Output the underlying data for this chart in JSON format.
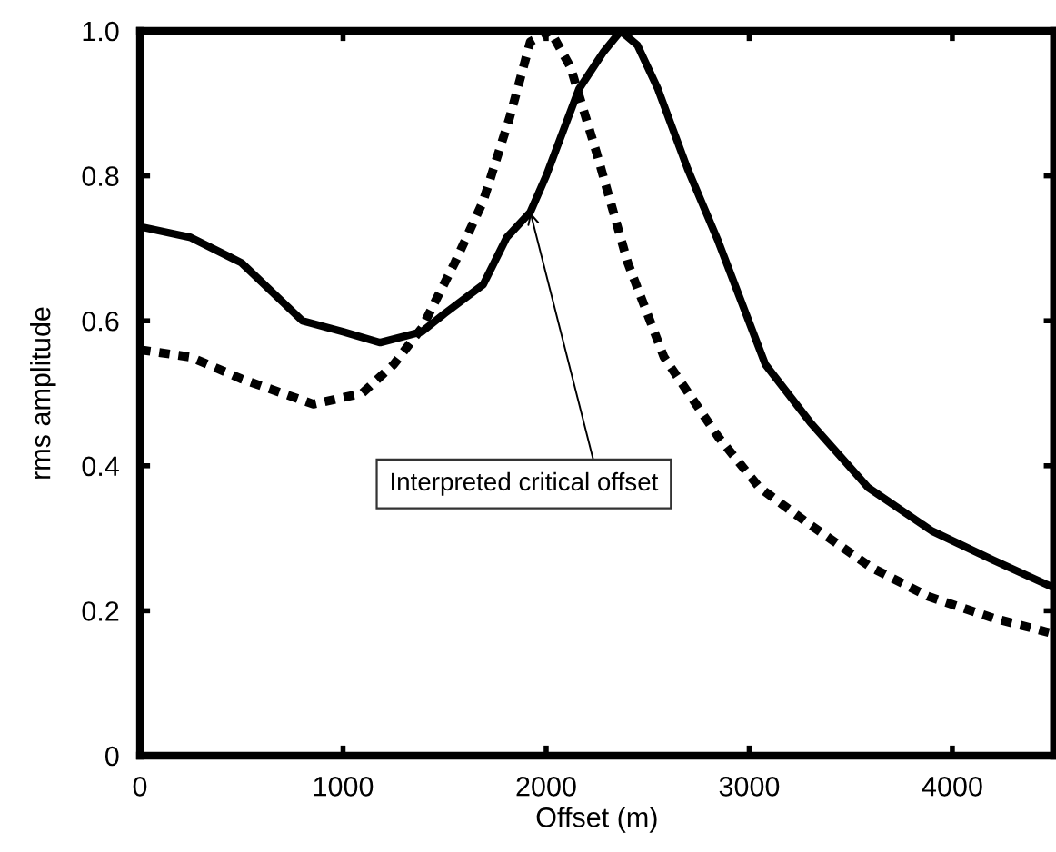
{
  "chart_data": {
    "type": "line",
    "xlabel": "Offset (m)",
    "ylabel": "rms amplitude",
    "xlim": [
      0,
      4500
    ],
    "ylim": [
      0,
      1.0
    ],
    "xticks": [
      0,
      1000,
      2000,
      3000,
      4000
    ],
    "yticks": [
      0,
      0.2,
      0.4,
      0.6,
      0.8,
      {
        "value": 1.0,
        "label": "1.0"
      }
    ],
    "grid": false,
    "legend": false,
    "marker": "none",
    "series": [
      {
        "color": "#000000",
        "line_style": "solid",
        "x": [
          0,
          250,
          500,
          800,
          1000,
          1183,
          1388,
          1500,
          1690,
          1806,
          1922,
          2000,
          2162,
          2280,
          2367,
          2450,
          2550,
          2696,
          2847,
          3079,
          3300,
          3585,
          3900,
          4200,
          4475
        ],
        "values": [
          0.73,
          0.715,
          0.68,
          0.6,
          0.585,
          0.57,
          0.585,
          0.61,
          0.65,
          0.715,
          0.75,
          0.8,
          0.92,
          0.97,
          1.0,
          0.98,
          0.92,
          0.81,
          0.71,
          0.54,
          0.46,
          0.37,
          0.31,
          0.27,
          0.235
        ]
      },
      {
        "color": "#000000",
        "line_style": "dashed",
        "x": [
          0,
          250,
          498,
          854,
          1094,
          1250,
          1388,
          1550,
          1690,
          1820,
          1922,
          2020,
          2120,
          2250,
          2402,
          2580,
          2847,
          3050,
          3292,
          3600,
          3879,
          4200,
          4475
        ],
        "values": [
          0.56,
          0.55,
          0.52,
          0.485,
          0.5,
          0.54,
          0.59,
          0.68,
          0.765,
          0.88,
          0.985,
          1.0,
          0.95,
          0.83,
          0.68,
          0.55,
          0.44,
          0.37,
          0.32,
          0.26,
          0.22,
          0.19,
          0.17
        ]
      }
    ],
    "annotations": [
      {
        "text": "Interpreted critical offset",
        "x": 1922,
        "y": 0.75
      }
    ]
  }
}
